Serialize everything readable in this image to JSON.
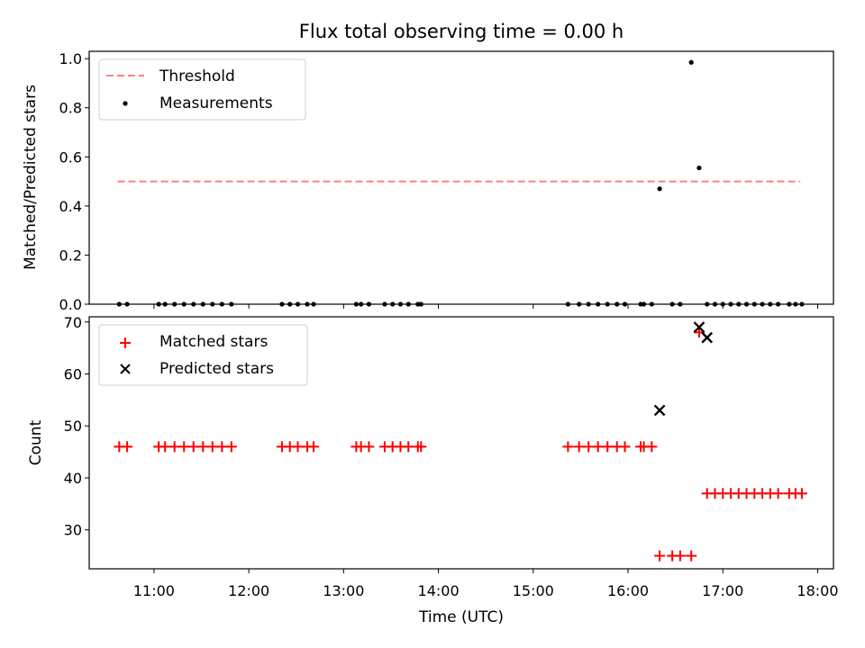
{
  "figure": {
    "title": "Flux total observing time = 0.00 h"
  },
  "chart_data": [
    {
      "type": "scatter",
      "ylabel": "Matched/Predicted stars",
      "ylim": [
        0,
        1.03
      ],
      "yticks": [
        0.0,
        0.2,
        0.4,
        0.6,
        0.8,
        1.0
      ],
      "ytick_labels": [
        "0.0",
        "0.2",
        "0.4",
        "0.6",
        "0.8",
        "1.0"
      ],
      "xlim": [
        "10:19",
        "18:10"
      ],
      "xticks": [
        "11:00",
        "12:00",
        "13:00",
        "14:00",
        "15:00",
        "16:00",
        "17:00",
        "18:00"
      ],
      "grid": false,
      "legend": {
        "placement": "top-left",
        "entries": [
          "Threshold",
          "Measurements"
        ]
      },
      "series": [
        {
          "name": "Threshold",
          "style": "dashed-line",
          "color": "#ff7f7f",
          "x": [
            "10:37",
            "17:49"
          ],
          "y": [
            0.5,
            0.5
          ]
        },
        {
          "name": "Measurements",
          "style": "dot",
          "color": "#000000",
          "x": [
            "10:38",
            "10:43",
            "11:03",
            "11:07",
            "11:13",
            "11:19",
            "11:25",
            "11:31",
            "11:37",
            "11:43",
            "11:49",
            "12:21",
            "12:26",
            "12:31",
            "12:37",
            "12:41",
            "13:08",
            "13:11",
            "13:16",
            "13:26",
            "13:31",
            "13:36",
            "13:41",
            "13:47",
            "13:49",
            "15:22",
            "15:29",
            "15:35",
            "15:41",
            "15:47",
            "15:53",
            "15:58",
            "16:08",
            "16:10",
            "16:15",
            "16:20",
            "16:28",
            "16:33",
            "16:40",
            "16:45",
            "16:50",
            "16:55",
            "17:00",
            "17:05",
            "17:10",
            "17:15",
            "17:20",
            "17:25",
            "17:30",
            "17:35",
            "17:42",
            "17:46",
            "17:50"
          ],
          "y": [
            0,
            0,
            0,
            0,
            0,
            0,
            0,
            0,
            0,
            0,
            0,
            0,
            0,
            0,
            0,
            0,
            0,
            0,
            0,
            0,
            0,
            0,
            0,
            0,
            0,
            0,
            0,
            0,
            0,
            0,
            0,
            0,
            0,
            0,
            0,
            0.47,
            0,
            0,
            0.985,
            0.555,
            0,
            0,
            0,
            0,
            0,
            0,
            0,
            0,
            0,
            0,
            0,
            0,
            0
          ]
        }
      ]
    },
    {
      "type": "scatter",
      "xlabel": "Time (UTC)",
      "ylabel": "Count",
      "ylim": [
        22.5,
        71
      ],
      "yticks": [
        30,
        40,
        50,
        60,
        70
      ],
      "ytick_labels": [
        "30",
        "40",
        "50",
        "60",
        "70"
      ],
      "xlim": [
        "10:19",
        "18:10"
      ],
      "xticks": [
        "11:00",
        "12:00",
        "13:00",
        "14:00",
        "15:00",
        "16:00",
        "17:00",
        "18:00"
      ],
      "grid": false,
      "legend": {
        "placement": "top-left",
        "entries": [
          "Matched stars",
          "Predicted stars"
        ]
      },
      "series": [
        {
          "name": "Matched stars",
          "marker": "plus",
          "color": "#ff0000",
          "x": [
            "10:38",
            "10:43",
            "11:03",
            "11:07",
            "11:13",
            "11:19",
            "11:25",
            "11:31",
            "11:37",
            "11:43",
            "11:49",
            "12:21",
            "12:26",
            "12:31",
            "12:37",
            "12:41",
            "13:08",
            "13:11",
            "13:16",
            "13:26",
            "13:31",
            "13:36",
            "13:41",
            "13:47",
            "13:49",
            "15:22",
            "15:29",
            "15:35",
            "15:41",
            "15:47",
            "15:53",
            "15:58",
            "16:08",
            "16:10",
            "16:15",
            "16:20",
            "16:28",
            "16:33",
            "16:40",
            "16:45",
            "16:50",
            "16:55",
            "17:00",
            "17:05",
            "17:10",
            "17:15",
            "17:20",
            "17:25",
            "17:30",
            "17:35",
            "17:42",
            "17:46",
            "17:50"
          ],
          "y": [
            46,
            46,
            46,
            46,
            46,
            46,
            46,
            46,
            46,
            46,
            46,
            46,
            46,
            46,
            46,
            46,
            46,
            46,
            46,
            46,
            46,
            46,
            46,
            46,
            46,
            46,
            46,
            46,
            46,
            46,
            46,
            46,
            46,
            46,
            46,
            25,
            25,
            25,
            25,
            68,
            37,
            37,
            37,
            37,
            37,
            37,
            37,
            37,
            37,
            37,
            37,
            37,
            37
          ]
        },
        {
          "name": "Predicted stars",
          "marker": "x",
          "color": "#000000",
          "x": [
            "16:20",
            "16:45",
            "16:50"
          ],
          "y": [
            53,
            69,
            67
          ]
        }
      ]
    }
  ]
}
